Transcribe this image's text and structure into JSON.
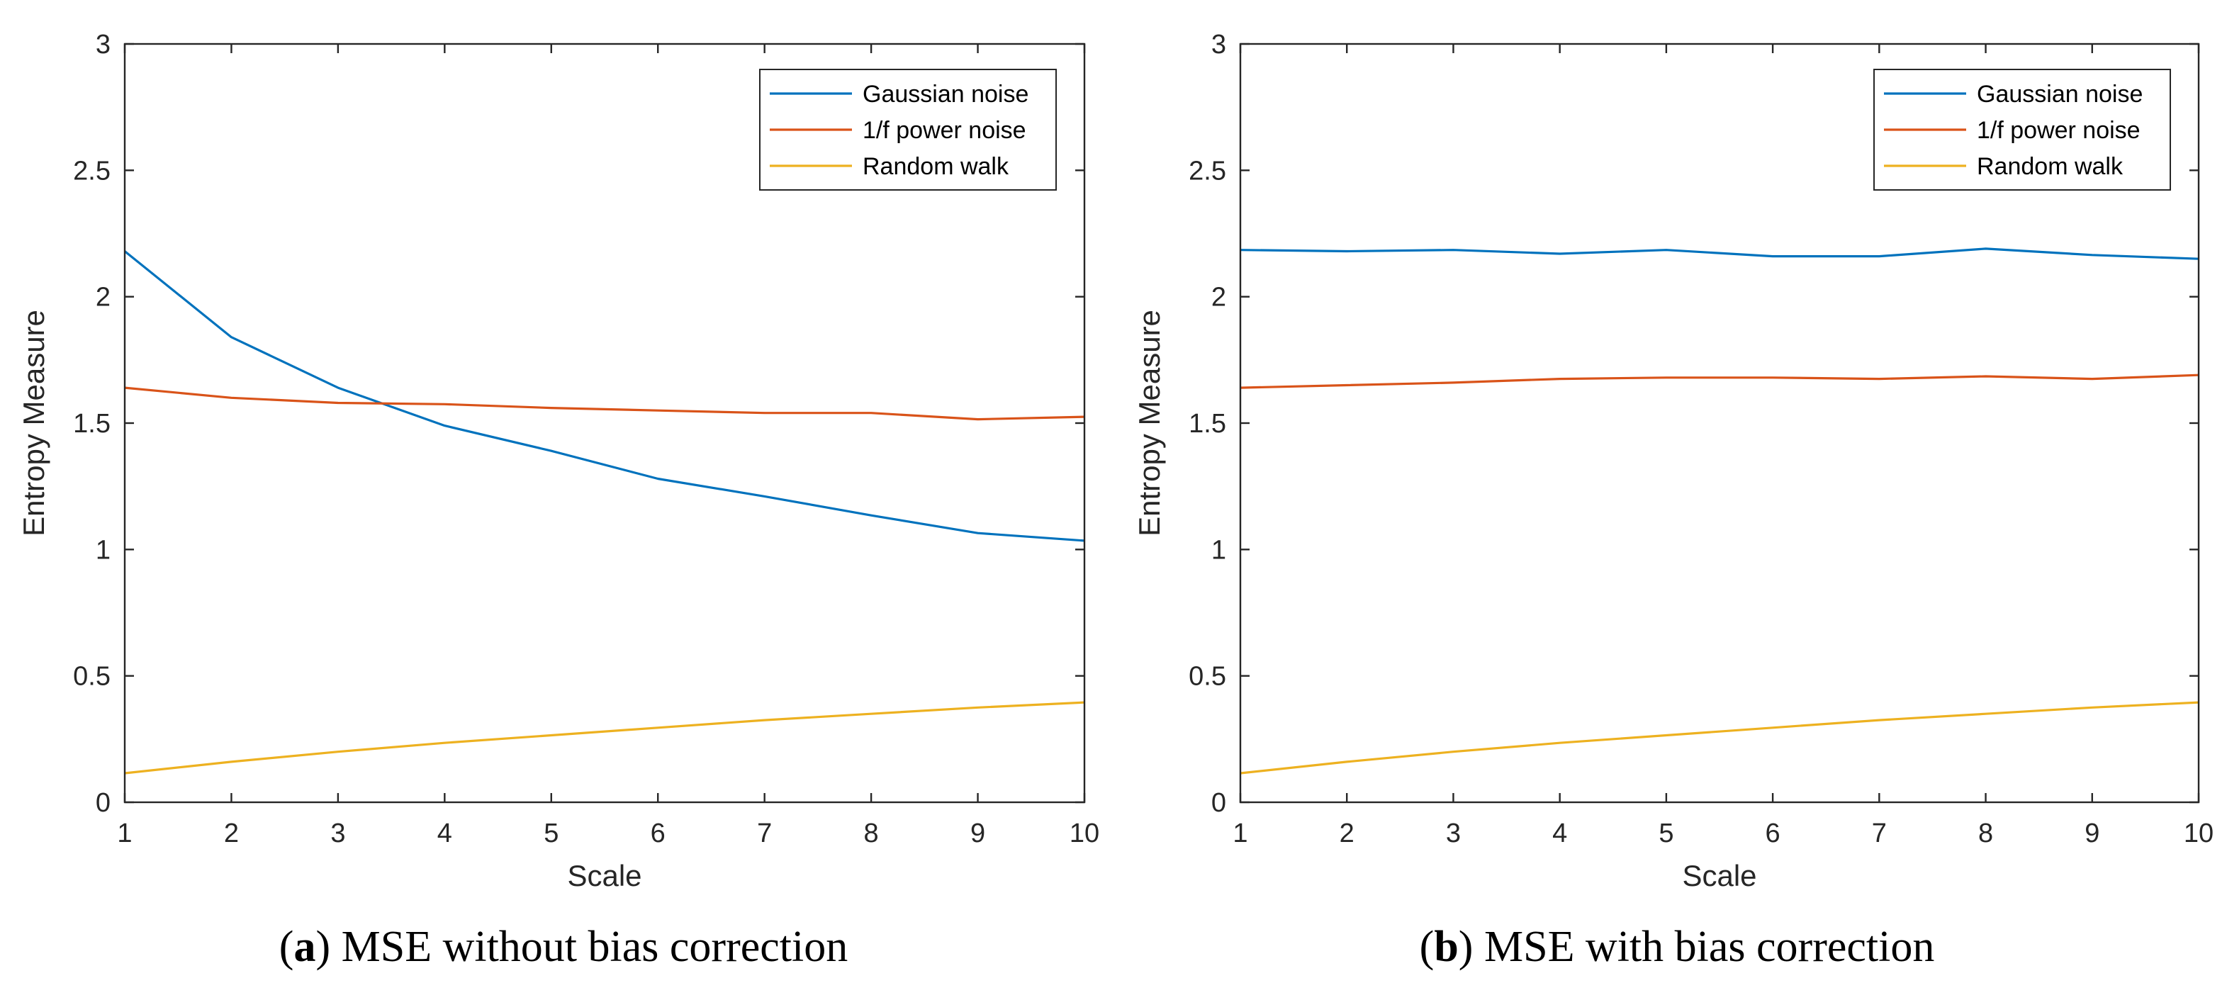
{
  "colors": {
    "gaussian": "#0072BD",
    "pink": "#D95319",
    "walk": "#EDB120",
    "axis": "#262626"
  },
  "chart_data": [
    {
      "type": "line",
      "panel_letter": "a",
      "caption_text": " MSE without bias correction",
      "xlabel": "Scale",
      "ylabel": "Entropy Measure",
      "xlim": [
        1,
        10
      ],
      "ylim": [
        0,
        3
      ],
      "xticks": [
        1,
        2,
        3,
        4,
        5,
        6,
        7,
        8,
        9,
        10
      ],
      "yticks": [
        0,
        0.5,
        1,
        1.5,
        2,
        2.5,
        3
      ],
      "ytick_labels": [
        "0",
        "0.5",
        "1",
        "1.5",
        "2",
        "2.5",
        "3"
      ],
      "legend_position": "top-right",
      "x": [
        1,
        2,
        3,
        4,
        5,
        6,
        7,
        8,
        9,
        10
      ],
      "series": [
        {
          "name": "Gaussian noise",
          "color_key": "gaussian",
          "values": [
            2.18,
            1.84,
            1.64,
            1.49,
            1.39,
            1.28,
            1.21,
            1.135,
            1.065,
            1.035
          ]
        },
        {
          "name": "1/f power noise",
          "color_key": "pink",
          "values": [
            1.64,
            1.6,
            1.58,
            1.575,
            1.56,
            1.55,
            1.54,
            1.54,
            1.515,
            1.525
          ]
        },
        {
          "name": "Random walk",
          "color_key": "walk",
          "values": [
            0.115,
            0.16,
            0.2,
            0.235,
            0.265,
            0.295,
            0.325,
            0.35,
            0.375,
            0.395
          ]
        }
      ]
    },
    {
      "type": "line",
      "panel_letter": "b",
      "caption_text": " MSE with bias correction",
      "xlabel": "Scale",
      "ylabel": "Entropy Measure",
      "xlim": [
        1,
        10
      ],
      "ylim": [
        0,
        3
      ],
      "xticks": [
        1,
        2,
        3,
        4,
        5,
        6,
        7,
        8,
        9,
        10
      ],
      "yticks": [
        0,
        0.5,
        1,
        1.5,
        2,
        2.5,
        3
      ],
      "ytick_labels": [
        "0",
        "0.5",
        "1",
        "1.5",
        "2",
        "2.5",
        "3"
      ],
      "legend_position": "top-right",
      "x": [
        1,
        2,
        3,
        4,
        5,
        6,
        7,
        8,
        9,
        10
      ],
      "series": [
        {
          "name": "Gaussian noise",
          "color_key": "gaussian",
          "values": [
            2.185,
            2.18,
            2.185,
            2.17,
            2.185,
            2.16,
            2.16,
            2.19,
            2.165,
            2.15
          ]
        },
        {
          "name": "1/f power noise",
          "color_key": "pink",
          "values": [
            1.64,
            1.65,
            1.66,
            1.675,
            1.68,
            1.68,
            1.675,
            1.685,
            1.675,
            1.69
          ]
        },
        {
          "name": "Random walk",
          "color_key": "walk",
          "values": [
            0.115,
            0.16,
            0.2,
            0.235,
            0.265,
            0.295,
            0.325,
            0.35,
            0.375,
            0.395
          ]
        }
      ]
    }
  ]
}
